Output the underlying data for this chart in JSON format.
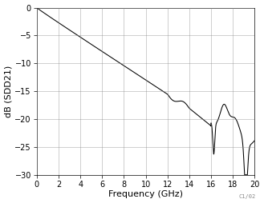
{
  "title": "",
  "xlabel": "Frequency (GHz)",
  "ylabel": "dB (SDD21)",
  "xlim": [
    0,
    20
  ],
  "ylim": [
    -30,
    0
  ],
  "xticks": [
    0,
    2,
    4,
    6,
    8,
    10,
    12,
    14,
    16,
    18,
    20
  ],
  "yticks": [
    0,
    -5,
    -10,
    -15,
    -20,
    -25,
    -30
  ],
  "line_color": "#000000",
  "background_color": "#ffffff",
  "grid_color": "#888888",
  "label_color": "#000000",
  "tick_color": "#000000",
  "watermark": "C1/02",
  "xlabel_fontsize": 8,
  "ylabel_fontsize": 8,
  "tick_fontsize": 7,
  "watermark_fontsize": 5
}
